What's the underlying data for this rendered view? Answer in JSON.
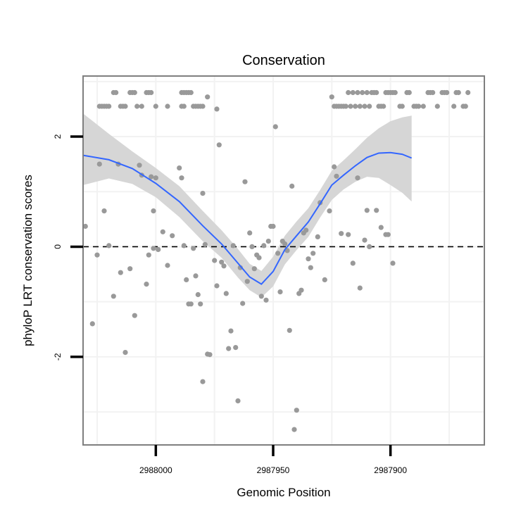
{
  "chart_data": {
    "type": "scatter",
    "title": "Conservation",
    "xlabel": "Genomic Position",
    "ylabel": "phyloP LRT conservation scores",
    "x_reversed": true,
    "xlim": [
      2988031,
      2987860
    ],
    "ylim": [
      -3.6,
      3.1
    ],
    "x_ticks": [
      2988000,
      2987950,
      2987900
    ],
    "x_tick_labels": [
      "2988000",
      "2987950",
      "2987900"
    ],
    "y_ticks": [
      -2,
      0,
      2
    ],
    "y_tick_labels": [
      "-2",
      "0",
      "2"
    ],
    "grid": true,
    "reference_line": {
      "y": 0,
      "style": "dashed"
    },
    "colors": {
      "points": "#999999",
      "smooth": "#3366ff",
      "ribbon": "#d6d6d6",
      "grid": "#f2f2f2",
      "panel_border": "#7f7f7f"
    },
    "points": [
      [
        2988024,
        2.55
      ],
      [
        2988023,
        2.55
      ],
      [
        2988022,
        2.55
      ],
      [
        2988021,
        2.55
      ],
      [
        2988020,
        2.55
      ],
      [
        2988018,
        2.8
      ],
      [
        2988017,
        2.8
      ],
      [
        2988015,
        2.55
      ],
      [
        2988014,
        2.55
      ],
      [
        2988013,
        2.55
      ],
      [
        2988011,
        2.8
      ],
      [
        2988010,
        2.8
      ],
      [
        2988009,
        2.8
      ],
      [
        2988008,
        2.55
      ],
      [
        2988006,
        2.55
      ],
      [
        2988004,
        2.8
      ],
      [
        2988003,
        2.8
      ],
      [
        2988002,
        2.8
      ],
      [
        2988000,
        2.55
      ],
      [
        2987995,
        2.55
      ],
      [
        2987989,
        2.8
      ],
      [
        2987988,
        2.8
      ],
      [
        2987987,
        2.8
      ],
      [
        2987986,
        2.8
      ],
      [
        2987985,
        2.8
      ],
      [
        2987984,
        2.55
      ],
      [
        2987983,
        2.55
      ],
      [
        2987982,
        2.55
      ],
      [
        2987981,
        2.55
      ],
      [
        2987980,
        2.55
      ],
      [
        2987988,
        2.55
      ],
      [
        2987989,
        2.55
      ],
      [
        2987978,
        2.72
      ],
      [
        2987974,
        2.5
      ],
      [
        2987925,
        2.72
      ],
      [
        2987924,
        2.55
      ],
      [
        2987923,
        2.55
      ],
      [
        2987922,
        2.55
      ],
      [
        2987921,
        2.55
      ],
      [
        2987920,
        2.55
      ],
      [
        2987919,
        2.55
      ],
      [
        2987918,
        2.8
      ],
      [
        2987917,
        2.55
      ],
      [
        2987916,
        2.8
      ],
      [
        2987915,
        2.55
      ],
      [
        2987914,
        2.8
      ],
      [
        2987913,
        2.55
      ],
      [
        2987912,
        2.8
      ],
      [
        2987911,
        2.55
      ],
      [
        2987910,
        2.8
      ],
      [
        2987909,
        2.55
      ],
      [
        2987908,
        2.8
      ],
      [
        2987907,
        2.8
      ],
      [
        2987906,
        2.8
      ],
      [
        2987905,
        2.55
      ],
      [
        2987904,
        2.55
      ],
      [
        2987903,
        2.55
      ],
      [
        2987902,
        2.8
      ],
      [
        2987901,
        2.8
      ],
      [
        2987900,
        2.8
      ],
      [
        2987899,
        2.8
      ],
      [
        2987898,
        2.8
      ],
      [
        2987896,
        2.55
      ],
      [
        2987895,
        2.55
      ],
      [
        2987893,
        2.8
      ],
      [
        2987892,
        2.8
      ],
      [
        2987890,
        2.55
      ],
      [
        2987889,
        2.55
      ],
      [
        2987888,
        2.55
      ],
      [
        2987886,
        2.55
      ],
      [
        2987884,
        2.8
      ],
      [
        2987883,
        2.8
      ],
      [
        2987882,
        2.8
      ],
      [
        2987880,
        2.55
      ],
      [
        2987878,
        2.8
      ],
      [
        2987877,
        2.8
      ],
      [
        2987876,
        2.8
      ],
      [
        2987873,
        2.55
      ],
      [
        2987872,
        2.8
      ],
      [
        2987871,
        2.8
      ],
      [
        2987869,
        2.55
      ],
      [
        2987868,
        2.55
      ],
      [
        2987867,
        2.8
      ],
      [
        2988030,
        0.37
      ],
      [
        2988027,
        -1.4
      ],
      [
        2988025,
        -0.15
      ],
      [
        2988024,
        1.5
      ],
      [
        2988022,
        0.65
      ],
      [
        2988020,
        0.02
      ],
      [
        2988018,
        -0.9
      ],
      [
        2988016,
        1.5
      ],
      [
        2988015,
        -0.47
      ],
      [
        2988013,
        -1.92
      ],
      [
        2988011,
        -0.4
      ],
      [
        2988009,
        -1.25
      ],
      [
        2988007,
        1.48
      ],
      [
        2988006,
        1.3
      ],
      [
        2988004,
        -0.68
      ],
      [
        2988003,
        -0.15
      ],
      [
        2988002,
        1.27
      ],
      [
        2988001,
        0.65
      ],
      [
        2988001,
        -0.03
      ],
      [
        2988000,
        1.25
      ],
      [
        2987999,
        -0.05
      ],
      [
        2987997,
        0.27
      ],
      [
        2987995,
        -0.34
      ],
      [
        2987993,
        0.2
      ],
      [
        2987990,
        1.43
      ],
      [
        2987989,
        1.25
      ],
      [
        2987988,
        0.02
      ],
      [
        2987987,
        -0.6
      ],
      [
        2987986,
        -1.04
      ],
      [
        2987985,
        -1.04
      ],
      [
        2987984,
        -0.03
      ],
      [
        2987983,
        -0.53
      ],
      [
        2987982,
        -0.87
      ],
      [
        2987981,
        -1.04
      ],
      [
        2987980,
        -2.45
      ],
      [
        2987980,
        0.97
      ],
      [
        2987979,
        0.04
      ],
      [
        2987978,
        -1.95
      ],
      [
        2987977,
        -1.96
      ],
      [
        2987975,
        -0.25
      ],
      [
        2987974,
        -0.71
      ],
      [
        2987973,
        1.85
      ],
      [
        2987972,
        -0.28
      ],
      [
        2987971,
        -0.35
      ],
      [
        2987970,
        -0.85
      ],
      [
        2987969,
        -1.85
      ],
      [
        2987968,
        -1.53
      ],
      [
        2987967,
        0.02
      ],
      [
        2987966,
        -1.83
      ],
      [
        2987965,
        -2.8
      ],
      [
        2987964,
        -0.38
      ],
      [
        2987963,
        -1.03
      ],
      [
        2987962,
        1.18
      ],
      [
        2987961,
        -0.63
      ],
      [
        2987960,
        0.25
      ],
      [
        2987959,
        0.0
      ],
      [
        2987958,
        -0.4
      ],
      [
        2987957,
        -0.15
      ],
      [
        2987956,
        -0.2
      ],
      [
        2987955,
        -0.9
      ],
      [
        2987954,
        0.02
      ],
      [
        2987953,
        -0.97
      ],
      [
        2987952,
        0.1
      ],
      [
        2987951,
        0.37
      ],
      [
        2987950,
        0.37
      ],
      [
        2987949,
        2.18
      ],
      [
        2987948,
        -0.12
      ],
      [
        2987947,
        -0.82
      ],
      [
        2987946,
        0.1
      ],
      [
        2987945,
        0.05
      ],
      [
        2987944,
        -0.07
      ],
      [
        2987943,
        -1.52
      ],
      [
        2987942,
        1.1
      ],
      [
        2987941,
        -3.32
      ],
      [
        2987940,
        -2.97
      ],
      [
        2987939,
        -0.85
      ],
      [
        2987938,
        -0.79
      ],
      [
        2987937,
        0.25
      ],
      [
        2987936,
        0.3
      ],
      [
        2987935,
        -0.22
      ],
      [
        2987934,
        -0.38
      ],
      [
        2987933,
        -0.12
      ],
      [
        2987931,
        0.18
      ],
      [
        2987930,
        0.8
      ],
      [
        2987928,
        -0.6
      ],
      [
        2987926,
        0.65
      ],
      [
        2987924,
        1.45
      ],
      [
        2987923,
        1.28
      ],
      [
        2987921,
        0.24
      ],
      [
        2987918,
        0.22
      ],
      [
        2987916,
        -0.3
      ],
      [
        2987914,
        1.25
      ],
      [
        2987913,
        -0.75
      ],
      [
        2987911,
        0.12
      ],
      [
        2987910,
        0.66
      ],
      [
        2987909,
        0.0
      ],
      [
        2987906,
        0.66
      ],
      [
        2987904,
        0.35
      ],
      [
        2987902,
        0.22
      ],
      [
        2987901,
        0.22
      ],
      [
        2987899,
        -0.3
      ]
    ],
    "smooth": {
      "x": [
        2988031,
        2988020,
        2988010,
        2988000,
        2987990,
        2987980,
        2987972,
        2987965,
        2987960,
        2987955,
        2987950,
        2987945,
        2987940,
        2987935,
        2987930,
        2987925,
        2987920,
        2987915,
        2987910,
        2987905,
        2987900,
        2987895,
        2987891
      ],
      "y": [
        1.66,
        1.58,
        1.42,
        1.15,
        0.82,
        0.38,
        0.05,
        -0.3,
        -0.55,
        -0.68,
        -0.45,
        -0.05,
        0.2,
        0.45,
        0.78,
        1.12,
        1.3,
        1.47,
        1.62,
        1.7,
        1.71,
        1.68,
        1.61
      ],
      "lower": [
        1.12,
        1.24,
        1.14,
        0.9,
        0.54,
        0.1,
        -0.2,
        -0.56,
        -0.79,
        -0.92,
        -0.72,
        -0.32,
        -0.06,
        0.18,
        0.53,
        0.85,
        1.04,
        1.18,
        1.27,
        1.25,
        1.12,
        0.98,
        0.82
      ],
      "upper": [
        2.42,
        2.05,
        1.73,
        1.43,
        1.1,
        0.65,
        0.3,
        -0.04,
        -0.31,
        -0.44,
        -0.18,
        0.2,
        0.46,
        0.7,
        1.03,
        1.38,
        1.57,
        1.77,
        1.98,
        2.15,
        2.28,
        2.35,
        2.38
      ]
    }
  }
}
